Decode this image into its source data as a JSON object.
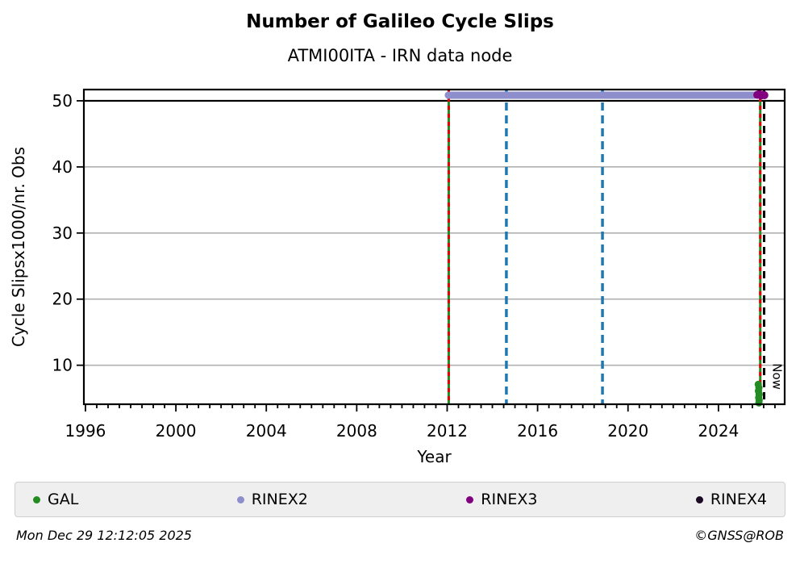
{
  "title": "Number of Galileo Cycle Slips",
  "subtitle": "ATMI00ITA - IRN data node",
  "footer": {
    "timestamp": "Mon Dec 29 12:12:05 2025",
    "credit": "©GNSS@ROB"
  },
  "legend": {
    "items": [
      {
        "label": "GAL",
        "color": "#228B22"
      },
      {
        "label": "RINEX2",
        "color": "#8e8ecd"
      },
      {
        "label": "RINEX3",
        "color": "#800080"
      },
      {
        "label": "RINEX4",
        "color": "#1c0a24"
      }
    ]
  },
  "chart_data": {
    "type": "scatter",
    "title": "Number of Galileo Cycle Slips",
    "subtitle": "ATMI00ITA - IRN data node",
    "xlabel": "Year",
    "ylabel": "Cycle Slipsx1000/nr. Obs",
    "xlim": [
      1995.93,
      2026.93
    ],
    "ylim": [
      4.1,
      51.7
    ],
    "x_ticks": [
      1996,
      2000,
      2004,
      2008,
      2012,
      2016,
      2020,
      2024
    ],
    "x_minor_step": 0.5,
    "y_ticks": [
      10,
      20,
      30,
      40,
      50
    ],
    "grid": "horizontal",
    "grid_color": "#b0b0b0",
    "axis_color": "#000000",
    "legend_position": "bottom",
    "series": [
      {
        "name": "RINEX2",
        "color": "#8e8ecd",
        "style": "thick-line",
        "y": 50.85,
        "x_start": 2012.05,
        "x_end": 2025.58,
        "width": 9
      },
      {
        "name": "RINEX3",
        "color": "#800080",
        "style": "points",
        "marker_radius": 5,
        "points": [
          [
            2025.72,
            50.9
          ],
          [
            2025.8,
            51.0
          ],
          [
            2025.88,
            50.8
          ],
          [
            2025.97,
            50.9
          ],
          [
            2026.03,
            50.85
          ]
        ]
      },
      {
        "name": "GAL",
        "color": "#228B22",
        "style": "points",
        "marker_radius": 4.5,
        "points": [
          [
            2025.76,
            7.1
          ],
          [
            2025.79,
            6.6
          ],
          [
            2025.77,
            6.1
          ],
          [
            2025.8,
            5.6
          ],
          [
            2025.78,
            5.1
          ],
          [
            2025.8,
            4.7
          ],
          [
            2025.79,
            4.3
          ]
        ]
      }
    ],
    "hlines": [
      {
        "y": 50,
        "color": "#000000",
        "width": 2.2
      }
    ],
    "vlines": [
      {
        "x": 2012.07,
        "color": "#228B22",
        "dash": "",
        "width": 3
      },
      {
        "x": 2012.07,
        "color": "#e60000",
        "dash": "5 5",
        "width": 3
      },
      {
        "x": 2014.62,
        "color": "#1f77b4",
        "dash": "10 6",
        "width": 3.5
      },
      {
        "x": 2018.87,
        "color": "#1f77b4",
        "dash": "10 6",
        "width": 3.5
      },
      {
        "x": 2025.85,
        "color": "#228B22",
        "dash": "",
        "width": 3
      },
      {
        "x": 2025.85,
        "color": "#e60000",
        "dash": "5 5",
        "width": 3
      },
      {
        "x": 2026.02,
        "color": "#000000",
        "dash": "9 6",
        "width": 3
      }
    ],
    "annotations": [
      {
        "text": "Now",
        "x": 2026.42,
        "y": 8.3,
        "rotation": 90,
        "font_size": 15
      }
    ]
  }
}
